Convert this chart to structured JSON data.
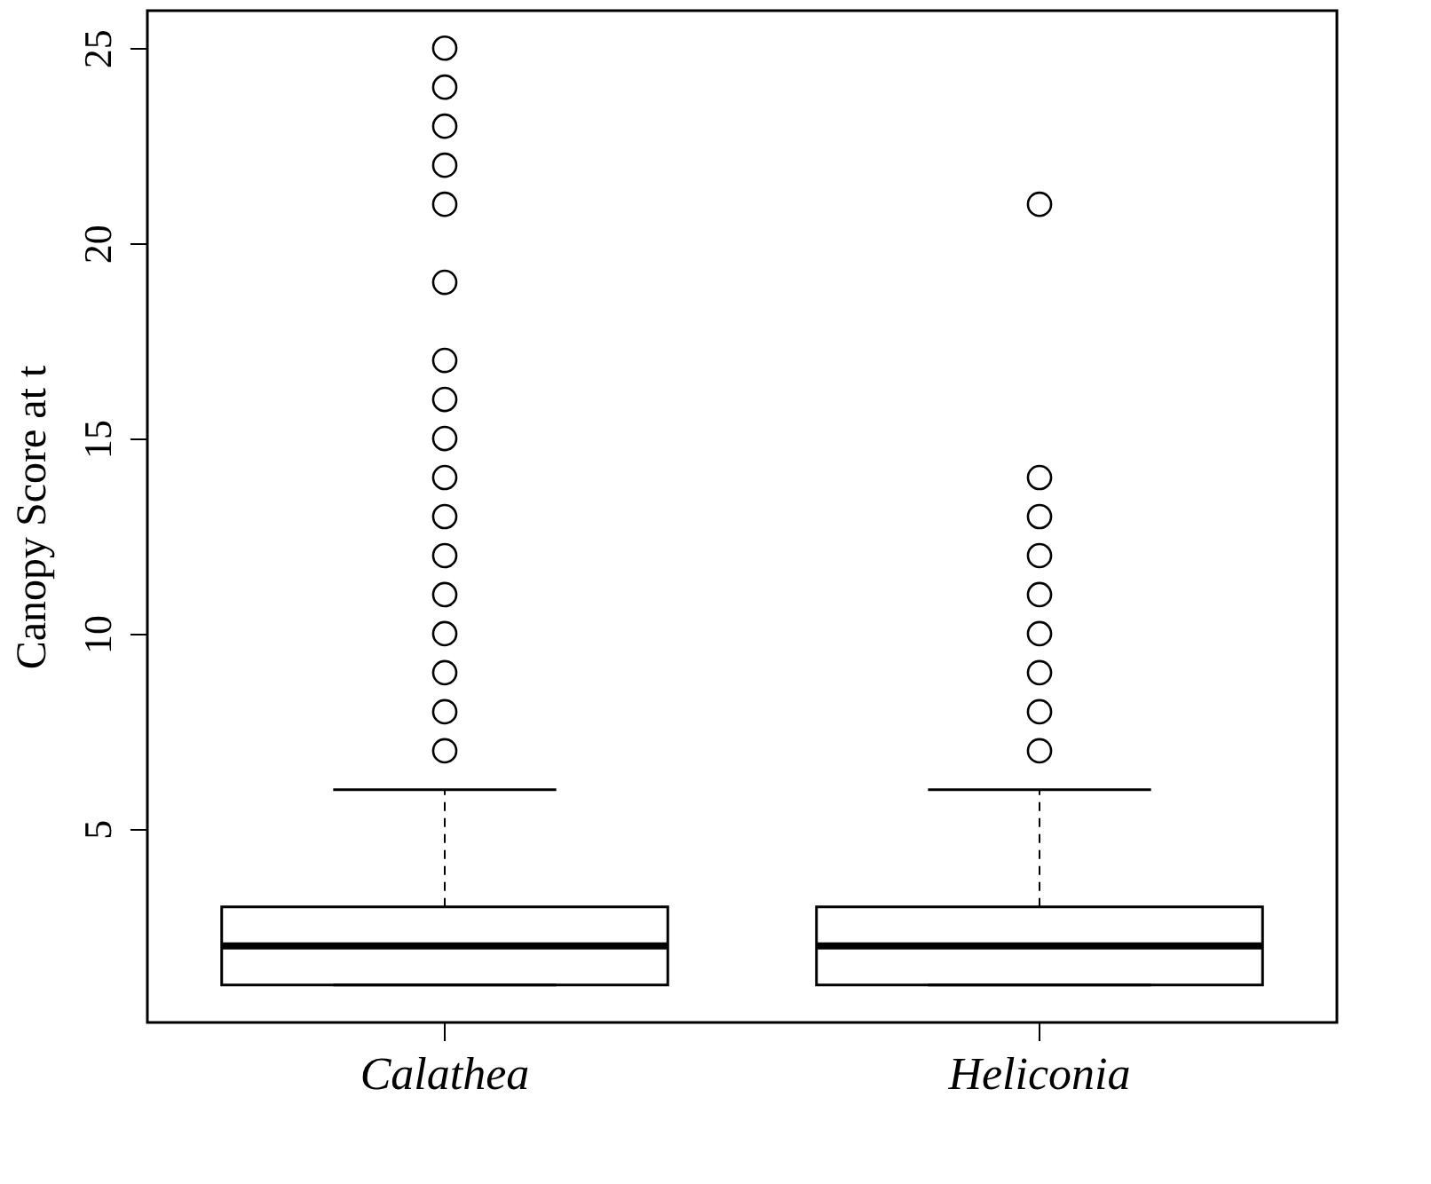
{
  "chart_data": {
    "type": "box",
    "ylabel": "Canopy Score at t",
    "categories": [
      "Calathea",
      "Heliconia"
    ],
    "boxes": [
      {
        "low": 1,
        "q1": 1,
        "median": 2,
        "q3": 3,
        "high": 6,
        "outliers": [
          7,
          8,
          9,
          10,
          11,
          12,
          13,
          14,
          15,
          16,
          17,
          19,
          21,
          22,
          23,
          24,
          25
        ]
      },
      {
        "low": 1,
        "q1": 1,
        "median": 2,
        "q3": 3,
        "high": 6,
        "outliers": [
          7,
          8,
          9,
          10,
          11,
          12,
          13,
          14,
          21
        ]
      }
    ],
    "ylim": [
      0.04,
      25.96
    ],
    "yticks": [
      5,
      10,
      15,
      20,
      25
    ],
    "grid": false
  }
}
